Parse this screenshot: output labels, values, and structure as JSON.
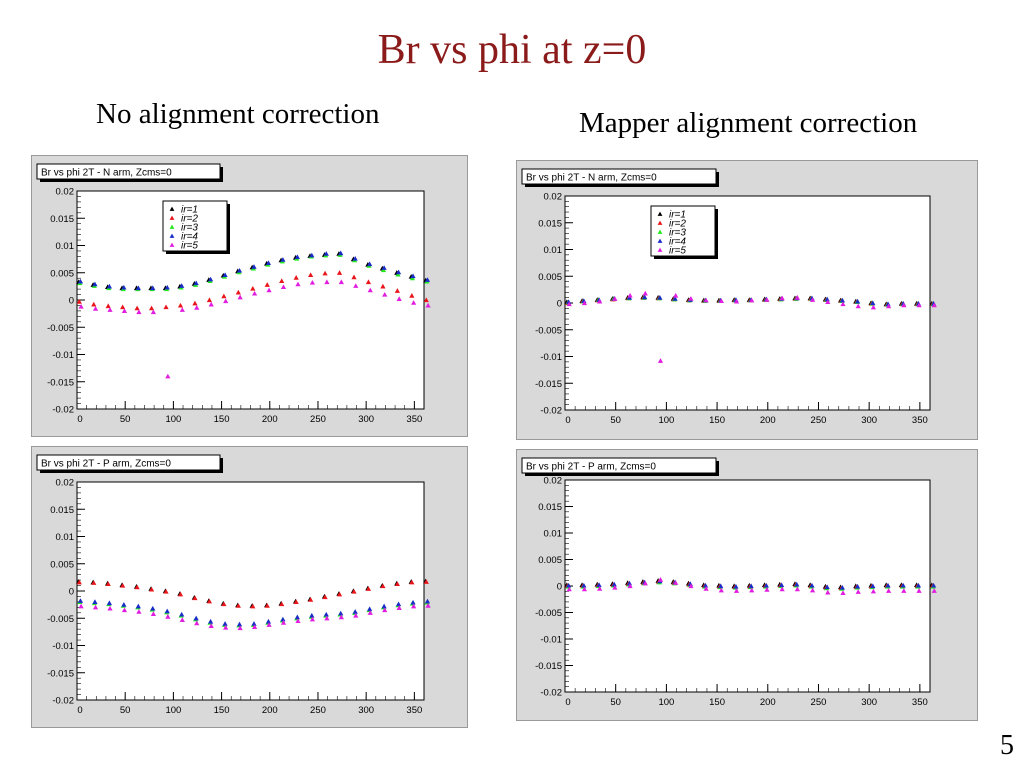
{
  "slide": {
    "title": "Br vs phi at z=0",
    "left_heading": "No alignment correction",
    "right_heading": "Mapper alignment correction",
    "page_number": "5"
  },
  "colors": {
    "title": "#8b1a1a",
    "ir=1": "#000000",
    "ir=2": "#e8161b",
    "ir=3": "#22e81e",
    "ir=4": "#1a2cc8",
    "ir=5": "#e11ee0",
    "frame_bg": "#d9d9d9",
    "plot_bg": "#ffffff"
  },
  "chart_data": [
    {
      "id": "no-corr-n-arm",
      "type": "scatter",
      "title": "Br vs phi 2T - N arm, Zcms=0",
      "legend": [
        "ir=1",
        "ir=2",
        "ir=3",
        "ir=4",
        "ir=5"
      ],
      "legend_placement": "top-left",
      "xlim": [
        0,
        360
      ],
      "ylim": [
        -0.02,
        0.02
      ],
      "xticks": [
        "0",
        "50",
        "100",
        "150",
        "200",
        "250",
        "300",
        "350"
      ],
      "yticks": [
        "-0.02",
        "-0.015",
        "-0.01",
        "-0.005",
        "0",
        "0.005",
        "0.01",
        "0.015",
        "0.02"
      ],
      "x": [
        0,
        15,
        30,
        45,
        60,
        75,
        90,
        105,
        120,
        135,
        150,
        165,
        180,
        195,
        210,
        225,
        240,
        255,
        270,
        285,
        300,
        315,
        330,
        345,
        360
      ],
      "series": [
        {
          "name": "ir=1",
          "values": [
            0.0033,
            0.0028,
            0.0024,
            0.0022,
            0.0022,
            0.0022,
            0.0022,
            0.0025,
            0.003,
            0.0037,
            0.0045,
            0.0053,
            0.006,
            0.0067,
            0.0073,
            0.0078,
            0.0081,
            0.0083,
            0.0085,
            0.0075,
            0.0065,
            0.0058,
            0.005,
            0.0043,
            0.0036
          ]
        },
        {
          "name": "ir=2",
          "values": [
            -0.0003,
            -0.0008,
            -0.0011,
            -0.0013,
            -0.0015,
            -0.0015,
            -0.0013,
            -0.001,
            -0.0006,
            0.0,
            0.0007,
            0.0014,
            0.0021,
            0.0028,
            0.0035,
            0.0041,
            0.0046,
            0.0049,
            0.005,
            0.0042,
            0.0033,
            0.0025,
            0.0017,
            0.0008,
            0.0
          ]
        },
        {
          "name": "ir=3",
          "values": [
            0.0031,
            0.0026,
            0.0022,
            0.002,
            0.002,
            0.002,
            0.002,
            0.0023,
            0.0028,
            0.0035,
            0.0043,
            0.0051,
            0.0058,
            0.0065,
            0.0071,
            0.0076,
            0.008,
            0.0082,
            0.0083,
            0.0073,
            0.0063,
            0.0055,
            0.0047,
            0.004,
            0.0034
          ]
        },
        {
          "name": "ir=4",
          "values": [
            0.0034,
            0.0029,
            0.0025,
            0.0023,
            0.0022,
            0.0022,
            0.0023,
            0.0026,
            0.0031,
            0.0038,
            0.0046,
            0.0054,
            0.0061,
            0.0068,
            0.0074,
            0.0079,
            0.0082,
            0.0085,
            0.0086,
            0.0076,
            0.0066,
            0.0059,
            0.0051,
            0.0044,
            0.0037
          ]
        },
        {
          "name": "ir=5",
          "values": [
            -0.0012,
            -0.0016,
            -0.0018,
            -0.002,
            -0.0022,
            -0.0022,
            -0.014,
            -0.0018,
            -0.0014,
            -0.0008,
            -0.0002,
            0.0005,
            0.0012,
            0.0018,
            0.0024,
            0.0029,
            0.0032,
            0.0033,
            0.0033,
            0.0026,
            0.0018,
            0.001,
            0.0002,
            -0.0005,
            -0.001
          ]
        }
      ]
    },
    {
      "id": "no-corr-p-arm",
      "type": "scatter",
      "title": "Br vs phi 2T - P arm, Zcms=0",
      "xlim": [
        0,
        360
      ],
      "ylim": [
        -0.02,
        0.02
      ],
      "xticks": [
        "0",
        "50",
        "100",
        "150",
        "200",
        "250",
        "300",
        "350"
      ],
      "yticks": [
        "-0.02",
        "-0.015",
        "-0.01",
        "-0.005",
        "0",
        "0.005",
        "0.01",
        "0.015",
        "0.02"
      ],
      "x": [
        0,
        15,
        30,
        45,
        60,
        75,
        90,
        105,
        120,
        135,
        150,
        165,
        180,
        195,
        210,
        225,
        240,
        255,
        270,
        285,
        300,
        315,
        330,
        345,
        360
      ],
      "series": [
        {
          "name": "ir=1",
          "values": [
            0.0017,
            0.0016,
            0.0014,
            0.0011,
            0.0008,
            0.0004,
            0.0,
            -0.0005,
            -0.0012,
            -0.0018,
            -0.0023,
            -0.0026,
            -0.0027,
            -0.0026,
            -0.0023,
            -0.0019,
            -0.0015,
            -0.001,
            -0.0005,
            0.0,
            0.0005,
            0.001,
            0.0014,
            0.0017,
            0.0018
          ]
        },
        {
          "name": "ir=2",
          "values": [
            0.0016,
            0.0015,
            0.0013,
            0.001,
            0.0007,
            0.0003,
            -0.0001,
            -0.0006,
            -0.0013,
            -0.0019,
            -0.0024,
            -0.0027,
            -0.0028,
            -0.0027,
            -0.0024,
            -0.002,
            -0.0016,
            -0.0011,
            -0.0006,
            -0.0001,
            0.0004,
            0.0009,
            0.0013,
            0.0016,
            0.0017
          ]
        },
        {
          "name": "ir=3",
          "values": [
            -0.002,
            -0.0022,
            -0.0024,
            -0.0027,
            -0.003,
            -0.0034,
            -0.0039,
            -0.0045,
            -0.0052,
            -0.0058,
            -0.0062,
            -0.0063,
            -0.0062,
            -0.0058,
            -0.0054,
            -0.005,
            -0.0047,
            -0.0045,
            -0.0043,
            -0.004,
            -0.0035,
            -0.003,
            -0.0026,
            -0.0023,
            -0.0021
          ]
        },
        {
          "name": "ir=4",
          "values": [
            -0.0018,
            -0.002,
            -0.0022,
            -0.0025,
            -0.0028,
            -0.0032,
            -0.0037,
            -0.0043,
            -0.005,
            -0.0056,
            -0.006,
            -0.0061,
            -0.006,
            -0.0056,
            -0.0052,
            -0.0048,
            -0.0045,
            -0.0043,
            -0.0041,
            -0.0038,
            -0.0033,
            -0.0028,
            -0.0024,
            -0.0021,
            -0.0019
          ]
        },
        {
          "name": "ir=5",
          "values": [
            -0.0028,
            -0.003,
            -0.0032,
            -0.0035,
            -0.0038,
            -0.0042,
            -0.0047,
            -0.0053,
            -0.0059,
            -0.0064,
            -0.0067,
            -0.0068,
            -0.0066,
            -0.0062,
            -0.0058,
            -0.0055,
            -0.0052,
            -0.005,
            -0.0048,
            -0.0045,
            -0.004,
            -0.0035,
            -0.0031,
            -0.0028,
            -0.0027
          ]
        }
      ]
    },
    {
      "id": "mapper-corr-n-arm",
      "type": "scatter",
      "title": "Br vs phi 2T - N arm, Zcms=0",
      "legend": [
        "ir=1",
        "ir=2",
        "ir=3",
        "ir=4",
        "ir=5"
      ],
      "legend_placement": "top-left",
      "xlim": [
        0,
        360
      ],
      "ylim": [
        -0.02,
        0.02
      ],
      "xticks": [
        "0",
        "50",
        "100",
        "150",
        "200",
        "250",
        "300",
        "350"
      ],
      "yticks": [
        "-0.02",
        "-0.015",
        "-0.01",
        "-0.005",
        "0",
        "0.005",
        "0.01",
        "0.015",
        "0.02"
      ],
      "x": [
        0,
        15,
        30,
        45,
        60,
        75,
        90,
        105,
        120,
        135,
        150,
        165,
        180,
        195,
        210,
        225,
        240,
        255,
        270,
        285,
        300,
        315,
        330,
        345,
        360
      ],
      "series": [
        {
          "name": "ir=1",
          "values": [
            0.0002,
            0.0004,
            0.0006,
            0.0008,
            0.001,
            0.0011,
            0.001,
            0.0008,
            0.0006,
            0.0005,
            0.0005,
            0.0006,
            0.0006,
            0.0007,
            0.0008,
            0.0009,
            0.0009,
            0.0007,
            0.0005,
            0.0003,
            0.0,
            -0.0002,
            -0.0001,
            -0.0001,
            -0.0001
          ]
        },
        {
          "name": "ir=2",
          "values": [
            0.0,
            0.0003,
            0.0005,
            0.0007,
            0.0009,
            0.001,
            0.0009,
            0.0007,
            0.0005,
            0.0004,
            0.0004,
            0.0005,
            0.0005,
            0.0006,
            0.0007,
            0.0008,
            0.0008,
            0.0006,
            0.0004,
            0.0002,
            -0.0001,
            -0.0003,
            -0.0002,
            -0.0002,
            -0.0002
          ]
        },
        {
          "name": "ir=3",
          "values": [
            0.0001,
            0.0003,
            0.0006,
            0.0008,
            0.0009,
            0.001,
            0.0009,
            0.0007,
            0.0005,
            0.0004,
            0.0004,
            0.0005,
            0.0005,
            0.0006,
            0.0007,
            0.0008,
            0.0008,
            0.0006,
            0.0004,
            0.0002,
            -0.0001,
            -0.0003,
            -0.0002,
            -0.0002,
            -0.0002
          ]
        },
        {
          "name": "ir=4",
          "values": [
            0.0002,
            0.0004,
            0.0006,
            0.0008,
            0.001,
            0.0011,
            0.001,
            0.0008,
            0.0006,
            0.0005,
            0.0005,
            0.0006,
            0.0006,
            0.0007,
            0.0008,
            0.0009,
            0.0009,
            0.0007,
            0.0005,
            0.0003,
            0.0,
            -0.0002,
            -0.0001,
            -0.0001,
            -0.0001
          ]
        },
        {
          "name": "ir=5",
          "values": [
            -0.0002,
            0.0,
            0.0003,
            0.0008,
            0.0014,
            0.0018,
            -0.0108,
            0.0014,
            0.0008,
            0.0005,
            0.0004,
            0.0003,
            0.0005,
            0.0006,
            0.0009,
            0.001,
            0.0006,
            0.0002,
            -0.0002,
            -0.0006,
            -0.0008,
            -0.0006,
            -0.0004,
            -0.0004,
            -0.0004
          ]
        }
      ]
    },
    {
      "id": "mapper-corr-p-arm",
      "type": "scatter",
      "title": "Br vs phi 2T - P arm, Zcms=0",
      "xlim": [
        0,
        360
      ],
      "ylim": [
        -0.02,
        0.02
      ],
      "xticks": [
        "0",
        "50",
        "100",
        "150",
        "200",
        "250",
        "300",
        "350"
      ],
      "yticks": [
        "-0.02",
        "-0.015",
        "-0.01",
        "-0.005",
        "0",
        "0.005",
        "0.01",
        "0.015",
        "0.02"
      ],
      "x": [
        0,
        15,
        30,
        45,
        60,
        75,
        90,
        105,
        120,
        135,
        150,
        165,
        180,
        195,
        210,
        225,
        240,
        255,
        270,
        285,
        300,
        315,
        330,
        345,
        360
      ],
      "series": [
        {
          "name": "ir=1",
          "values": [
            0.0002,
            0.0002,
            0.0003,
            0.0004,
            0.0006,
            0.0008,
            0.001,
            0.0008,
            0.0005,
            0.0002,
            0.0001,
            0.0,
            0.0001,
            0.0002,
            0.0003,
            0.0004,
            0.0002,
            -0.0001,
            -0.0002,
            0.0,
            0.0001,
            0.0002,
            0.0002,
            0.0002,
            0.0002
          ]
        },
        {
          "name": "ir=2",
          "values": [
            0.0,
            0.0,
            0.0001,
            0.0002,
            0.0004,
            0.0006,
            0.0008,
            0.0006,
            0.0003,
            0.0,
            -0.0001,
            -0.0002,
            -0.0001,
            0.0,
            0.0001,
            0.0002,
            0.0,
            -0.0003,
            -0.0004,
            -0.0002,
            -0.0001,
            0.0,
            0.0,
            0.0,
            0.0
          ]
        },
        {
          "name": "ir=3",
          "values": [
            -0.0001,
            -0.0001,
            0.0,
            0.0001,
            0.0003,
            0.0005,
            0.0007,
            0.0005,
            0.0002,
            -0.0001,
            -0.0002,
            -0.0003,
            -0.0002,
            -0.0001,
            0.0,
            0.0001,
            -0.0001,
            -0.0004,
            -0.0005,
            -0.0003,
            -0.0002,
            -0.0001,
            -0.0001,
            -0.0001,
            -0.0001
          ]
        },
        {
          "name": "ir=4",
          "values": [
            0.0001,
            0.0001,
            0.0002,
            0.0003,
            0.0005,
            0.0007,
            0.0009,
            0.0007,
            0.0004,
            0.0001,
            0.0,
            -0.0001,
            0.0,
            0.0001,
            0.0002,
            0.0003,
            0.0001,
            -0.0002,
            -0.0003,
            -0.0001,
            0.0,
            0.0001,
            0.0001,
            0.0001,
            0.0001
          ]
        },
        {
          "name": "ir=5",
          "values": [
            -0.0006,
            -0.0006,
            -0.0005,
            -0.0003,
            0.0,
            0.0005,
            0.0012,
            0.0006,
            0.0,
            -0.0005,
            -0.0008,
            -0.0009,
            -0.0008,
            -0.0007,
            -0.0006,
            -0.0006,
            -0.0008,
            -0.0012,
            -0.0013,
            -0.0011,
            -0.001,
            -0.0009,
            -0.0009,
            -0.0009,
            -0.0009
          ]
        }
      ]
    }
  ]
}
